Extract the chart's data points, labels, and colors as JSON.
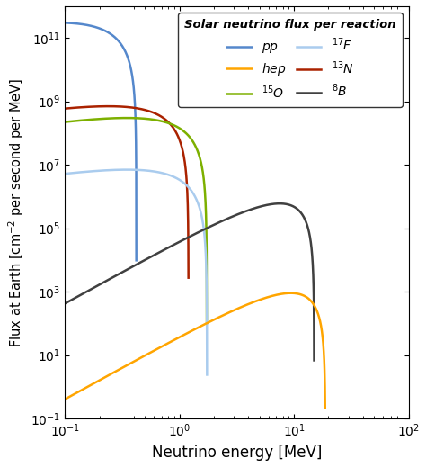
{
  "title": "Solar neutrino flux per reaction",
  "xlabel": "Neutrino energy [MeV]",
  "ylabel": "Flux at Earth [cm$^{-2}$ per second per MeV]",
  "xlim": [
    0.1,
    100
  ],
  "ylim": [
    0.1,
    1000000000000.0
  ],
  "legend_title": "Solar neutrino flux per reaction",
  "colors": {
    "pp": "#5588CC",
    "15O": "#7DB000",
    "13N": "#AA2200",
    "hep": "#FFA500",
    "17F": "#AACCEE",
    "8B": "#404040"
  },
  "spectra": {
    "pp": {
      "E_max": 0.42,
      "peak": 300000000000.0,
      "alpha": 0.5,
      "beta": 2.0,
      "E_start": 0.1
    },
    "13N": {
      "E_max": 1.199,
      "peak": 700000000.0,
      "alpha": 0.5,
      "beta": 2.0,
      "E_start": 0.1
    },
    "15O": {
      "E_max": 1.732,
      "peak": 300000000.0,
      "alpha": 0.5,
      "beta": 2.0,
      "E_start": 0.1
    },
    "17F": {
      "E_max": 1.74,
      "peak": 7000000.0,
      "alpha": 0.5,
      "beta": 2.0,
      "E_start": 0.1
    },
    "8B": {
      "E_max": 15.0,
      "peak": 600000.0,
      "alpha": 2.0,
      "beta": 2.0,
      "E_start": 0.1
    },
    "hep": {
      "E_max": 18.77,
      "peak": 900.0,
      "alpha": 2.0,
      "beta": 2.0,
      "E_start": 0.1
    }
  }
}
